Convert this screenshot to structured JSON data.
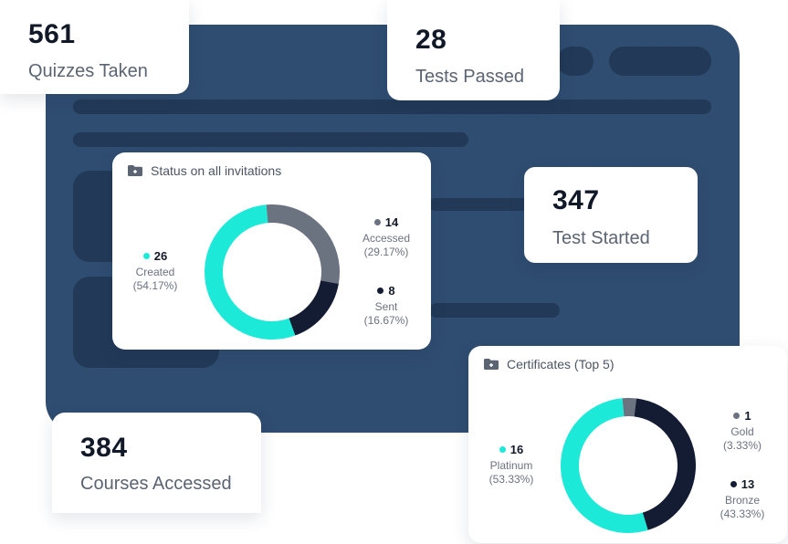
{
  "colors": {
    "backdrop": "#2f4d70",
    "created": "#1de9d8",
    "accessed": "#6b7280",
    "sent": "#131c33",
    "platinum": "#1de9d8",
    "gold": "#6b7280",
    "bronze": "#131c33"
  },
  "stats": {
    "quizzes": {
      "value": "561",
      "label": "Quizzes Taken"
    },
    "tests_passed": {
      "value": "28",
      "label": "Tests Passed"
    },
    "tests_started": {
      "value": "347",
      "label": "Test Started"
    },
    "courses": {
      "value": "384",
      "label": "Courses Accessed"
    }
  },
  "invitations": {
    "title": "Status on all invitations",
    "icon": "folder-icon",
    "segments": [
      {
        "count": "26",
        "label": "Created",
        "pct": "(54.17%)",
        "value": 54.17,
        "color": "#1de9d8"
      },
      {
        "count": "14",
        "label": "Accessed",
        "pct": "(29.17%)",
        "value": 29.17,
        "color": "#6b7280"
      },
      {
        "count": "8",
        "label": "Sent",
        "pct": "(16.67%)",
        "value": 16.67,
        "color": "#131c33"
      }
    ]
  },
  "certificates": {
    "title": "Certificates (Top 5)",
    "icon": "folder-icon",
    "segments": [
      {
        "count": "16",
        "label": "Platinum",
        "pct": "(53.33%)",
        "value": 53.33,
        "color": "#1de9d8"
      },
      {
        "count": "1",
        "label": "Gold",
        "pct": "(3.33%)",
        "value": 3.33,
        "color": "#6b7280"
      },
      {
        "count": "13",
        "label": "Bronze",
        "pct": "(43.33%)",
        "value": 43.33,
        "color": "#131c33"
      }
    ]
  }
}
